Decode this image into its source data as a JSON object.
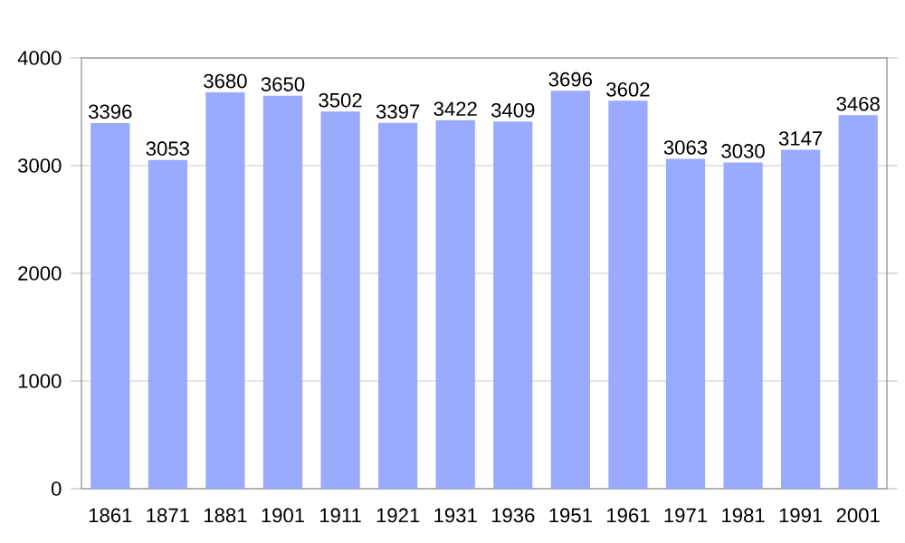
{
  "chart_data": {
    "type": "bar",
    "categories": [
      "1861",
      "1871",
      "1881",
      "1901",
      "1911",
      "1921",
      "1931",
      "1936",
      "1951",
      "1961",
      "1971",
      "1981",
      "1991",
      "2001"
    ],
    "values": [
      3396,
      3053,
      3680,
      3650,
      3502,
      3397,
      3422,
      3409,
      3696,
      3602,
      3063,
      3030,
      3147,
      3468
    ],
    "color": "#99aaff",
    "ylim": [
      0,
      4000
    ],
    "yticks": [
      0,
      1000,
      2000,
      3000,
      4000
    ],
    "grid": "y",
    "data_labels": true
  }
}
